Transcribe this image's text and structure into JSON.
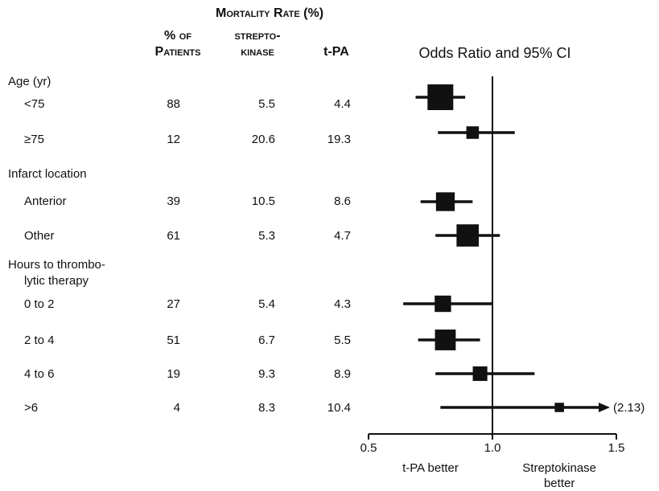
{
  "header": {
    "mortality_rate": "Mortality Rate (%)",
    "pct_patients_line1": "% of",
    "pct_patients_line2": "Patients",
    "strepto_line1": "strepto-",
    "strepto_line2": "kinase",
    "tpa": "t-PA",
    "odds_ratio": "Odds Ratio and 95% CI"
  },
  "groups": [
    {
      "label": "Age (yr)"
    },
    {
      "label": "Infarct location"
    },
    {
      "label_line1": "Hours to thrombo-",
      "label_line2": "lytic therapy"
    }
  ],
  "rows": [
    {
      "label": "<75",
      "pct": "88",
      "sk": "5.5",
      "tpa": "4.4"
    },
    {
      "label": "≥75",
      "pct": "12",
      "sk": "20.6",
      "tpa": "19.3"
    },
    {
      "label": "Anterior",
      "pct": "39",
      "sk": "10.5",
      "tpa": "8.6"
    },
    {
      "label": "Other",
      "pct": "61",
      "sk": "5.3",
      "tpa": "4.7"
    },
    {
      "label": "0 to 2",
      "pct": "27",
      "sk": "5.4",
      "tpa": "4.3"
    },
    {
      "label": "2 to 4",
      "pct": "51",
      "sk": "6.7",
      "tpa": "5.5"
    },
    {
      "label": "4 to 6",
      "pct": "19",
      "sk": "9.3",
      "tpa": "8.9"
    },
    {
      "label": ">6",
      "pct": "4",
      "sk": "8.3",
      "tpa": "10.4"
    }
  ],
  "chart_data": {
    "type": "forest",
    "title": "Odds Ratio and 95% CI",
    "xlim": [
      0.5,
      1.5
    ],
    "ticks": [
      "0.5",
      "1.0",
      "1.5"
    ],
    "reference_line": 1.0,
    "categories": [
      "<75",
      "≥75",
      "Anterior",
      "Other",
      "0 to 2",
      "2 to 4",
      "4 to 6",
      ">6"
    ],
    "odds_ratio": [
      0.79,
      0.92,
      0.81,
      0.9,
      0.8,
      0.81,
      0.95,
      1.27
    ],
    "ci_low": [
      0.69,
      0.78,
      0.71,
      0.77,
      0.64,
      0.7,
      0.77,
      0.79
    ],
    "ci_high": [
      0.89,
      1.09,
      0.92,
      1.03,
      1.0,
      0.95,
      1.17,
      2.13
    ],
    "weight_pct": [
      88,
      12,
      39,
      61,
      27,
      51,
      19,
      4
    ],
    "clipped_upper_label": "(2.13)",
    "left_annotation": "t-PA better",
    "right_annotation_line1": "Streptokinase",
    "right_annotation_line2": "better"
  }
}
